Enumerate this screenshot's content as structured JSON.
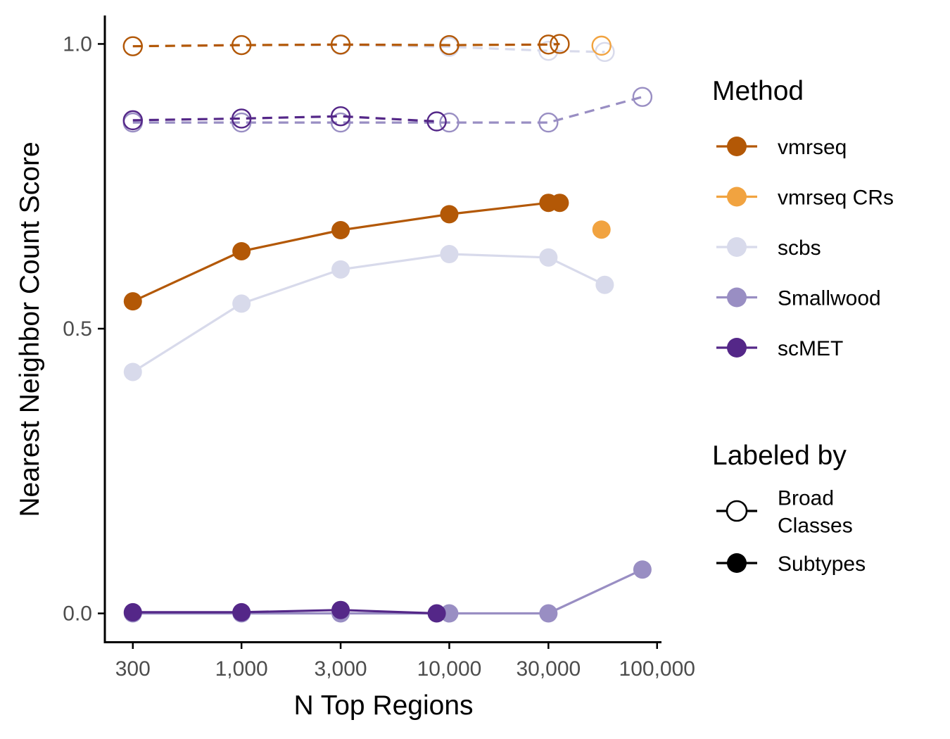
{
  "chart_data": {
    "type": "line",
    "xlabel": "N Top Regions",
    "ylabel": "Nearest Neighbor Count Score",
    "x_scale": "log10",
    "xlim": [
      220,
      105000
    ],
    "ylim": [
      -0.05,
      1.05
    ],
    "x_ticks": [
      300,
      1000,
      3000,
      10000,
      30000,
      100000
    ],
    "x_tick_labels": [
      "300",
      "1,000",
      "3,000",
      "10,000",
      "30,000",
      "100,000"
    ],
    "y_ticks": [
      0,
      0.5,
      1
    ],
    "y_tick_labels": [
      "0.0",
      "0.5",
      "1.0"
    ],
    "grid": false,
    "legend_placement": "right",
    "legends": {
      "method": {
        "title": "Method",
        "entries": [
          {
            "label": "vmrseq",
            "color": "#b35806"
          },
          {
            "label": "vmrseq CRs",
            "color": "#f1a340"
          },
          {
            "label": "scbs",
            "color": "#d8daeb"
          },
          {
            "label": "Smallwood",
            "color": "#998ec3"
          },
          {
            "label": "scMET",
            "color": "#542788"
          }
        ]
      },
      "labeled_by": {
        "title": "Labeled by",
        "entries": [
          {
            "label_lines": [
              "Broad",
              "Classes"
            ],
            "style": "open"
          },
          {
            "label_lines": [
              "Subtypes"
            ],
            "style": "filled"
          }
        ]
      }
    },
    "series": [
      {
        "method": "scbs",
        "labeled_by": "Broad Classes",
        "color": "#d8daeb",
        "filled": false,
        "dashed": true,
        "x": [
          300,
          1000,
          3000,
          10000,
          30000,
          56000
        ],
        "y": [
          0.996,
          0.998,
          0.998,
          0.995,
          0.988,
          0.986
        ]
      },
      {
        "method": "Smallwood",
        "labeled_by": "Broad Classes",
        "color": "#998ec3",
        "filled": false,
        "dashed": true,
        "x": [
          300,
          1000,
          3000,
          10000,
          30000,
          85000
        ],
        "y": [
          0.862,
          0.862,
          0.862,
          0.862,
          0.862,
          0.907
        ]
      },
      {
        "method": "vmrseq",
        "labeled_by": "Broad Classes",
        "color": "#b35806",
        "filled": false,
        "dashed": true,
        "x": [
          300,
          1000,
          3000,
          10000,
          30000,
          34000
        ],
        "y": [
          0.996,
          0.998,
          0.999,
          0.998,
          0.999,
          1.0
        ]
      },
      {
        "method": "vmrseq CRs",
        "labeled_by": "Broad Classes",
        "color": "#f1a340",
        "filled": false,
        "dashed": true,
        "x": [
          54000
        ],
        "y": [
          0.997
        ]
      },
      {
        "method": "scMET",
        "labeled_by": "Broad Classes",
        "color": "#542788",
        "filled": false,
        "dashed": true,
        "x": [
          300,
          1000,
          3000,
          8700
        ],
        "y": [
          0.866,
          0.869,
          0.873,
          0.864
        ]
      },
      {
        "method": "scbs",
        "labeled_by": "Subtypes",
        "color": "#d8daeb",
        "filled": true,
        "dashed": false,
        "x": [
          300,
          1000,
          3000,
          10000,
          30000,
          56000
        ],
        "y": [
          0.424,
          0.544,
          0.604,
          0.631,
          0.625,
          0.577
        ]
      },
      {
        "method": "Smallwood",
        "labeled_by": "Subtypes",
        "color": "#998ec3",
        "filled": true,
        "dashed": false,
        "x": [
          300,
          1000,
          3000,
          10000,
          30000,
          85000
        ],
        "y": [
          0.0,
          0.0,
          0.0,
          0.0,
          0.0,
          0.077
        ]
      },
      {
        "method": "vmrseq",
        "labeled_by": "Subtypes",
        "color": "#b35806",
        "filled": true,
        "dashed": false,
        "x": [
          300,
          1000,
          3000,
          10000,
          30000,
          34000
        ],
        "y": [
          0.548,
          0.636,
          0.673,
          0.701,
          0.721,
          0.721
        ]
      },
      {
        "method": "vmrseq CRs",
        "labeled_by": "Subtypes",
        "color": "#f1a340",
        "filled": true,
        "dashed": false,
        "x": [
          54000
        ],
        "y": [
          0.674
        ]
      },
      {
        "method": "scMET",
        "labeled_by": "Subtypes",
        "color": "#542788",
        "filled": true,
        "dashed": false,
        "x": [
          300,
          1000,
          3000,
          8700
        ],
        "y": [
          0.002,
          0.002,
          0.006,
          0.0
        ]
      }
    ]
  }
}
